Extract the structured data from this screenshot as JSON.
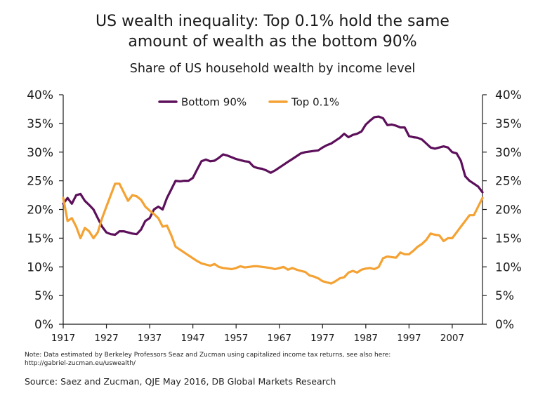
{
  "title_line1": "US wealth inequality: Top 0.1% hold the same",
  "title_line2": "amount of wealth as the bottom 90%",
  "subtitle": "Share of US household wealth by income level",
  "note": "Note: Data estimated by Berkeley Professors Seaz and Zucman using capitalized income tax returns, see also here: http://gabriel-zucman.eu/uswealth/",
  "source": "Source: Saez and Zucman, QJE May 2016, DB Global Markets Research",
  "colors": {
    "bottom90": "#5c0f5a",
    "top01": "#f4a233",
    "axis": "#1a1a1a"
  },
  "chart_data": {
    "type": "line",
    "title": "US wealth inequality: Top 0.1% hold the same amount of wealth as the bottom 90%",
    "subtitle": "Share of US household wealth by income level",
    "xlabel": "",
    "ylabel": "",
    "xlim": [
      1917,
      2014
    ],
    "ylim": [
      0,
      40
    ],
    "grid": false,
    "legend": "top-center",
    "x_ticks": [
      1917,
      1927,
      1937,
      1947,
      1957,
      1967,
      1977,
      1987,
      1997,
      2007
    ],
    "y_ticks": [
      0,
      5,
      10,
      15,
      20,
      25,
      30,
      35,
      40
    ],
    "y_tick_labels": [
      "0%",
      "5%",
      "10%",
      "15%",
      "20%",
      "25%",
      "30%",
      "35%",
      "40%"
    ],
    "series": [
      {
        "name": "Bottom  90%",
        "color": "#5c0f5a",
        "points": [
          [
            1917,
            21.0
          ],
          [
            1918,
            22.0
          ],
          [
            1919,
            21.0
          ],
          [
            1920,
            22.5
          ],
          [
            1921,
            22.7
          ],
          [
            1922,
            21.5
          ],
          [
            1923,
            20.8
          ],
          [
            1924,
            20.0
          ],
          [
            1925,
            18.5
          ],
          [
            1926,
            17.0
          ],
          [
            1927,
            16.0
          ],
          [
            1928,
            15.7
          ],
          [
            1929,
            15.6
          ],
          [
            1930,
            16.2
          ],
          [
            1931,
            16.2
          ],
          [
            1932,
            16.0
          ],
          [
            1933,
            15.8
          ],
          [
            1934,
            15.7
          ],
          [
            1935,
            16.5
          ],
          [
            1936,
            18.0
          ],
          [
            1937,
            18.5
          ],
          [
            1938,
            20.0
          ],
          [
            1939,
            20.5
          ],
          [
            1940,
            20.0
          ],
          [
            1941,
            22.0
          ],
          [
            1942,
            23.5
          ],
          [
            1943,
            25.0
          ],
          [
            1944,
            24.9
          ],
          [
            1945,
            25.0
          ],
          [
            1946,
            25.0
          ],
          [
            1947,
            25.5
          ],
          [
            1948,
            27.0
          ],
          [
            1949,
            28.4
          ],
          [
            1950,
            28.7
          ],
          [
            1951,
            28.4
          ],
          [
            1952,
            28.5
          ],
          [
            1953,
            29.0
          ],
          [
            1954,
            29.6
          ],
          [
            1955,
            29.4
          ],
          [
            1956,
            29.1
          ],
          [
            1957,
            28.8
          ],
          [
            1958,
            28.6
          ],
          [
            1959,
            28.4
          ],
          [
            1960,
            28.3
          ],
          [
            1961,
            27.5
          ],
          [
            1962,
            27.2
          ],
          [
            1963,
            27.1
          ],
          [
            1964,
            26.8
          ],
          [
            1965,
            26.4
          ],
          [
            1966,
            26.8
          ],
          [
            1967,
            27.3
          ],
          [
            1968,
            27.8
          ],
          [
            1969,
            28.3
          ],
          [
            1970,
            28.8
          ],
          [
            1971,
            29.3
          ],
          [
            1972,
            29.8
          ],
          [
            1973,
            30.0
          ],
          [
            1974,
            30.1
          ],
          [
            1975,
            30.2
          ],
          [
            1976,
            30.3
          ],
          [
            1977,
            30.8
          ],
          [
            1978,
            31.2
          ],
          [
            1979,
            31.5
          ],
          [
            1980,
            32.0
          ],
          [
            1981,
            32.5
          ],
          [
            1982,
            33.2
          ],
          [
            1983,
            32.6
          ],
          [
            1984,
            33.0
          ],
          [
            1985,
            33.2
          ],
          [
            1986,
            33.6
          ],
          [
            1987,
            34.8
          ],
          [
            1988,
            35.5
          ],
          [
            1989,
            36.1
          ],
          [
            1990,
            36.2
          ],
          [
            1991,
            35.9
          ],
          [
            1992,
            34.7
          ],
          [
            1993,
            34.8
          ],
          [
            1994,
            34.6
          ],
          [
            1995,
            34.3
          ],
          [
            1996,
            34.3
          ],
          [
            1997,
            32.8
          ],
          [
            1998,
            32.6
          ],
          [
            1999,
            32.5
          ],
          [
            2000,
            32.2
          ],
          [
            2001,
            31.5
          ],
          [
            2002,
            30.8
          ],
          [
            2003,
            30.6
          ],
          [
            2004,
            30.8
          ],
          [
            2005,
            31.0
          ],
          [
            2006,
            30.8
          ],
          [
            2007,
            30.0
          ],
          [
            2008,
            29.8
          ],
          [
            2009,
            28.5
          ],
          [
            2010,
            25.8
          ],
          [
            2011,
            25.0
          ],
          [
            2012,
            24.5
          ],
          [
            2013,
            24.0
          ],
          [
            2014,
            23.0
          ]
        ]
      },
      {
        "name": "Top 0.1%",
        "color": "#f4a233",
        "points": [
          [
            1917,
            22.0
          ],
          [
            1918,
            18.0
          ],
          [
            1919,
            18.5
          ],
          [
            1920,
            17.0
          ],
          [
            1921,
            15.0
          ],
          [
            1922,
            16.8
          ],
          [
            1923,
            16.2
          ],
          [
            1924,
            15.0
          ],
          [
            1925,
            16.0
          ],
          [
            1926,
            18.5
          ],
          [
            1927,
            20.5
          ],
          [
            1928,
            22.5
          ],
          [
            1929,
            24.5
          ],
          [
            1930,
            24.5
          ],
          [
            1931,
            23.0
          ],
          [
            1932,
            21.5
          ],
          [
            1933,
            22.5
          ],
          [
            1934,
            22.3
          ],
          [
            1935,
            21.7
          ],
          [
            1936,
            20.5
          ],
          [
            1937,
            19.8
          ],
          [
            1938,
            19.2
          ],
          [
            1939,
            18.5
          ],
          [
            1940,
            17.0
          ],
          [
            1941,
            17.2
          ],
          [
            1942,
            15.5
          ],
          [
            1943,
            13.5
          ],
          [
            1944,
            13.0
          ],
          [
            1945,
            12.5
          ],
          [
            1946,
            12.0
          ],
          [
            1947,
            11.5
          ],
          [
            1948,
            11.0
          ],
          [
            1949,
            10.6
          ],
          [
            1950,
            10.4
          ],
          [
            1951,
            10.2
          ],
          [
            1952,
            10.5
          ],
          [
            1953,
            10.0
          ],
          [
            1954,
            9.8
          ],
          [
            1955,
            9.7
          ],
          [
            1956,
            9.6
          ],
          [
            1957,
            9.8
          ],
          [
            1958,
            10.1
          ],
          [
            1959,
            9.9
          ],
          [
            1960,
            10.0
          ],
          [
            1961,
            10.1
          ],
          [
            1962,
            10.1
          ],
          [
            1963,
            10.0
          ],
          [
            1964,
            9.9
          ],
          [
            1965,
            9.8
          ],
          [
            1966,
            9.6
          ],
          [
            1967,
            9.8
          ],
          [
            1968,
            10.0
          ],
          [
            1969,
            9.5
          ],
          [
            1970,
            9.8
          ],
          [
            1971,
            9.5
          ],
          [
            1972,
            9.3
          ],
          [
            1973,
            9.1
          ],
          [
            1974,
            8.5
          ],
          [
            1975,
            8.3
          ],
          [
            1976,
            8.0
          ],
          [
            1977,
            7.5
          ],
          [
            1978,
            7.3
          ],
          [
            1979,
            7.1
          ],
          [
            1980,
            7.5
          ],
          [
            1981,
            8.0
          ],
          [
            1982,
            8.2
          ],
          [
            1983,
            9.0
          ],
          [
            1984,
            9.3
          ],
          [
            1985,
            9.0
          ],
          [
            1986,
            9.5
          ],
          [
            1987,
            9.7
          ],
          [
            1988,
            9.8
          ],
          [
            1989,
            9.6
          ],
          [
            1990,
            10.0
          ],
          [
            1991,
            11.5
          ],
          [
            1992,
            11.8
          ],
          [
            1993,
            11.7
          ],
          [
            1994,
            11.6
          ],
          [
            1995,
            12.5
          ],
          [
            1996,
            12.2
          ],
          [
            1997,
            12.2
          ],
          [
            1998,
            12.8
          ],
          [
            1999,
            13.5
          ],
          [
            2000,
            14.0
          ],
          [
            2001,
            14.7
          ],
          [
            2002,
            15.8
          ],
          [
            2003,
            15.6
          ],
          [
            2004,
            15.5
          ],
          [
            2005,
            14.5
          ],
          [
            2006,
            15.0
          ],
          [
            2007,
            15.0
          ],
          [
            2008,
            16.0
          ],
          [
            2009,
            17.0
          ],
          [
            2010,
            18.0
          ],
          [
            2011,
            19.0
          ],
          [
            2012,
            19.0
          ],
          [
            2013,
            20.5
          ],
          [
            2014,
            22.0
          ]
        ]
      }
    ]
  }
}
